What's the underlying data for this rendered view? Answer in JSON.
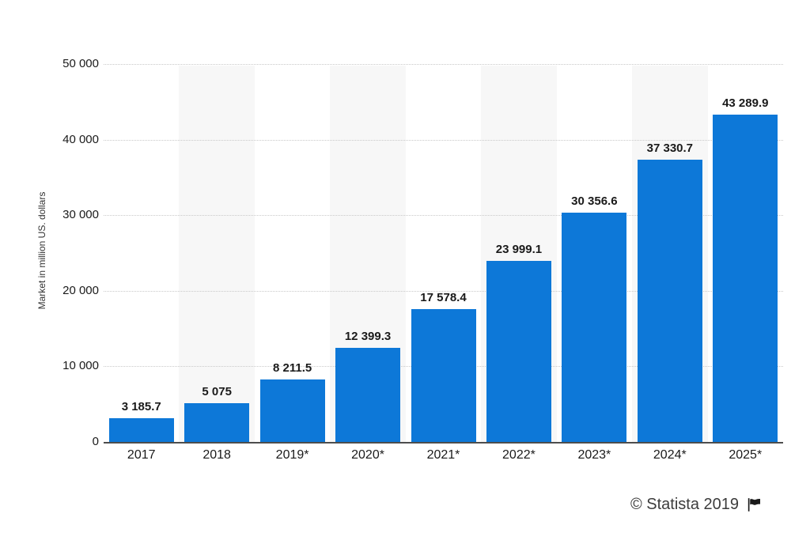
{
  "chart_data": {
    "type": "bar",
    "title": "",
    "xlabel": "",
    "ylabel": "Market in million US. dollars",
    "ylim": [
      0,
      50000
    ],
    "yticks": [
      0,
      10000,
      20000,
      30000,
      40000,
      50000
    ],
    "ytick_labels": [
      "0",
      "10 000",
      "20 000",
      "30 000",
      "40 000",
      "50 000"
    ],
    "categories": [
      "2017",
      "2018",
      "2019*",
      "2020*",
      "2021*",
      "2022*",
      "2023*",
      "2024*",
      "2025*"
    ],
    "values": [
      3185.7,
      5075,
      8211.5,
      12399.3,
      17578.4,
      23999.1,
      30356.6,
      37330.7,
      43289.9
    ],
    "value_labels": [
      "3 185.7",
      "5 075",
      "8 211.5",
      "12 399.3",
      "17 578.4",
      "23 999.1",
      "30 356.6",
      "37 330.7",
      "43 289.9"
    ],
    "legend": "none",
    "grid": "horizontal-dotted",
    "highlight_band_columns": [
      1,
      3,
      5,
      7
    ]
  },
  "colors": {
    "bar": "#0d78d8",
    "band": "#f7f7f7",
    "gridline": "#c9c9c9",
    "axis_line": "#4d4d4d",
    "label_text": "#1a1a1a",
    "credit_text": "#3c3c3c"
  },
  "credit": {
    "label": "© Statista 2019"
  }
}
